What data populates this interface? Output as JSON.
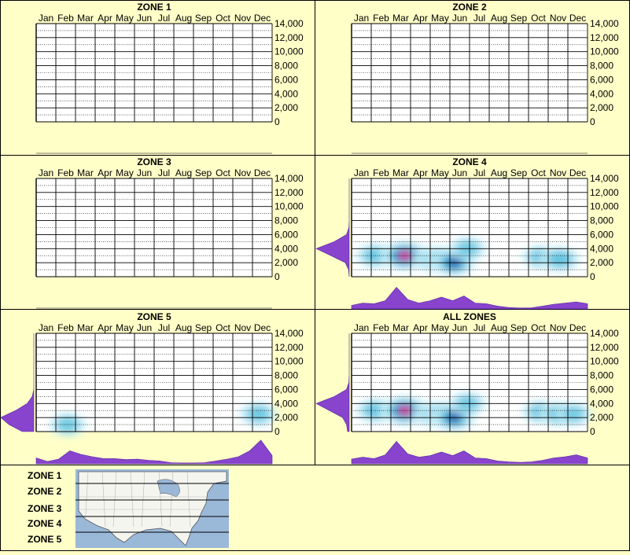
{
  "months": [
    "Jan",
    "Feb",
    "Mar",
    "Apr",
    "May",
    "Jun",
    "Jul",
    "Aug",
    "Sep",
    "Oct",
    "Nov",
    "Dec"
  ],
  "y_ticks": [
    "14,000",
    "12,000",
    "10,000",
    "8,000",
    "6,000",
    "4,000",
    "2,000",
    "0"
  ],
  "colors": {
    "background": "#ffffc8",
    "grid": "#000000",
    "density_fill": "#8844cc",
    "heat_low": "#c8eef8",
    "heat_mid": "#20a8d0",
    "heat_high": "#ff1493"
  },
  "legend": {
    "zones": [
      "ZONE 1",
      "ZONE 2",
      "ZONE 3",
      "ZONE 4",
      "ZONE 5"
    ],
    "map": "us-map"
  },
  "chart_data": [
    {
      "type": "heatmap",
      "title": "ZONE 1",
      "y_range": [
        0,
        14000
      ],
      "has_data": false,
      "month_profile": [],
      "elev_profile": [],
      "hotspots": []
    },
    {
      "type": "heatmap",
      "title": "ZONE 2",
      "y_range": [
        0,
        14000
      ],
      "has_data": false,
      "month_profile": [],
      "elev_profile": [],
      "hotspots": []
    },
    {
      "type": "heatmap",
      "title": "ZONE 3",
      "y_range": [
        0,
        14000
      ],
      "has_data": false,
      "month_profile": [],
      "elev_profile": [],
      "hotspots": []
    },
    {
      "type": "heatmap",
      "title": "ZONE 4",
      "y_range": [
        0,
        14000
      ],
      "has_data": true,
      "month_profile": [
        0.15,
        0.25,
        0.22,
        0.35,
        0.92,
        0.4,
        0.25,
        0.35,
        0.5,
        0.35,
        0.55,
        0.25,
        0.22,
        0.12,
        0.06,
        0.04,
        0.05,
        0.12,
        0.2,
        0.25,
        0.3,
        0.22
      ],
      "elev_profile": [
        0.0,
        0.02,
        0.12,
        0.55,
        1.0,
        0.45,
        0.08,
        0.01,
        0.0,
        0.0,
        0.0,
        0.0,
        0.0,
        0.0,
        0.0
      ],
      "hotspots": [
        {
          "month": 1.2,
          "elev": 3000,
          "intensity": 0.45
        },
        {
          "month": 2.7,
          "elev": 3000,
          "intensity": 1.0
        },
        {
          "month": 4.2,
          "elev": 2500,
          "intensity": 0.6
        },
        {
          "month": 4.7,
          "elev": 2500,
          "intensity": 0.55
        },
        {
          "month": 5.2,
          "elev": 2000,
          "intensity": 0.7
        },
        {
          "month": 5.9,
          "elev": 4000,
          "intensity": 0.35
        },
        {
          "month": 9.6,
          "elev": 2800,
          "intensity": 0.35
        },
        {
          "month": 10.6,
          "elev": 2500,
          "intensity": 0.5
        }
      ]
    },
    {
      "type": "heatmap",
      "title": "ZONE 5",
      "y_range": [
        0,
        14000
      ],
      "has_data": true,
      "month_profile": [
        0.25,
        0.1,
        0.2,
        0.55,
        0.4,
        0.3,
        0.22,
        0.22,
        0.18,
        0.2,
        0.15,
        0.12,
        0.05,
        0.03,
        0.03,
        0.05,
        0.12,
        0.2,
        0.3,
        0.55,
        1.0,
        0.35
      ],
      "elev_profile": [
        0.35,
        0.75,
        1.0,
        0.55,
        0.2,
        0.05,
        0.0,
        0.0,
        0.0,
        0.0,
        0.0,
        0.0,
        0.0,
        0.0,
        0.0
      ],
      "hotspots": [
        {
          "month": 1.6,
          "elev": 1000,
          "intensity": 0.35
        },
        {
          "month": 11.3,
          "elev": 2500,
          "intensity": 0.4
        }
      ]
    },
    {
      "type": "heatmap",
      "title": "ALL ZONES",
      "y_range": [
        0,
        14000
      ],
      "has_data": true,
      "month_profile": [
        0.2,
        0.28,
        0.22,
        0.38,
        0.95,
        0.42,
        0.28,
        0.35,
        0.5,
        0.35,
        0.55,
        0.25,
        0.22,
        0.12,
        0.08,
        0.06,
        0.08,
        0.15,
        0.25,
        0.3,
        0.38,
        0.25
      ],
      "elev_profile": [
        0.05,
        0.08,
        0.2,
        0.6,
        1.0,
        0.45,
        0.08,
        0.01,
        0.0,
        0.0,
        0.0,
        0.0,
        0.0,
        0.0,
        0.0
      ],
      "hotspots": [
        {
          "month": 1.2,
          "elev": 3000,
          "intensity": 0.45
        },
        {
          "month": 2.7,
          "elev": 3000,
          "intensity": 1.0
        },
        {
          "month": 4.2,
          "elev": 2500,
          "intensity": 0.6
        },
        {
          "month": 4.7,
          "elev": 2500,
          "intensity": 0.55
        },
        {
          "month": 5.2,
          "elev": 2000,
          "intensity": 0.7
        },
        {
          "month": 5.9,
          "elev": 4000,
          "intensity": 0.35
        },
        {
          "month": 9.6,
          "elev": 2800,
          "intensity": 0.35
        },
        {
          "month": 10.6,
          "elev": 2500,
          "intensity": 0.5
        },
        {
          "month": 11.3,
          "elev": 2500,
          "intensity": 0.3
        }
      ]
    }
  ]
}
